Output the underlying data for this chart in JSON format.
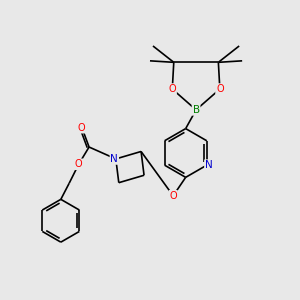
{
  "background_color": "#e8e8e8",
  "atom_colors": {
    "C": "#000000",
    "N": "#0000cd",
    "O": "#ff0000",
    "B": "#008000"
  },
  "bond_color": "#000000",
  "bond_width": 1.2,
  "figsize": [
    3.0,
    3.0
  ],
  "dpi": 100
}
